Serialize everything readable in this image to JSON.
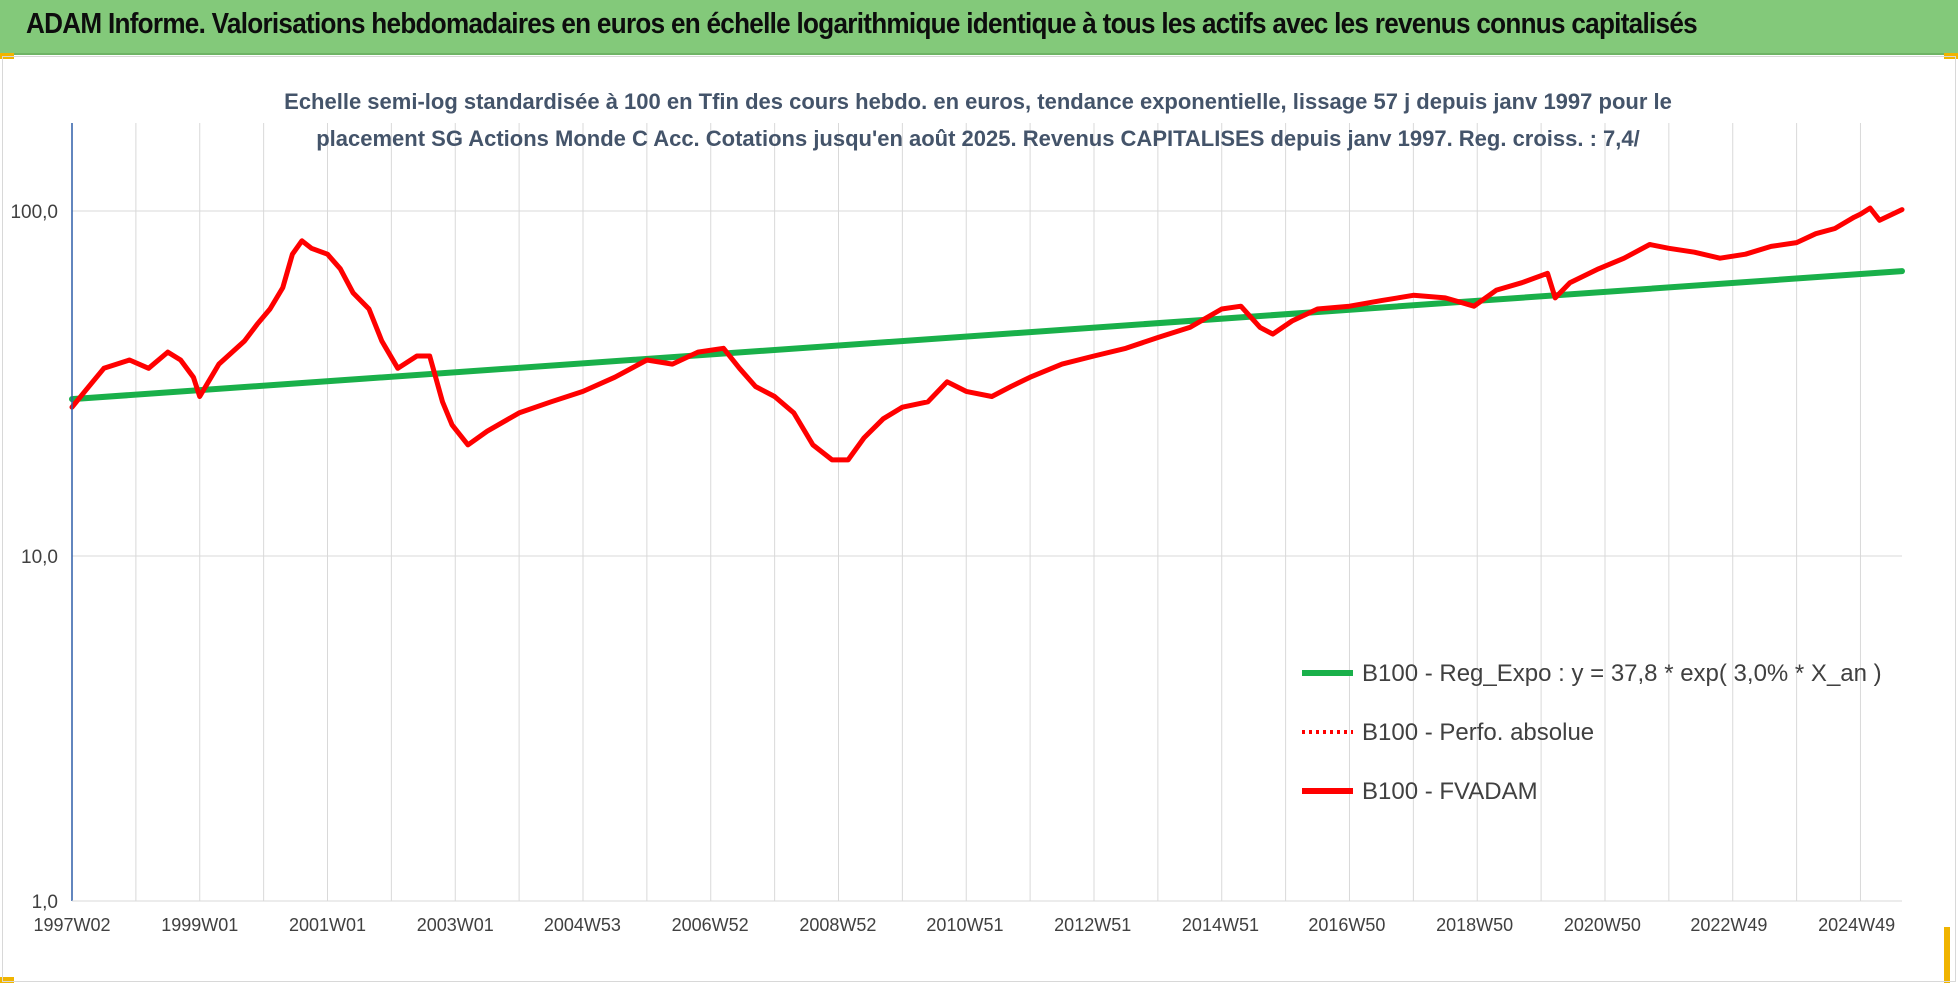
{
  "banner": {
    "title": "ADAM Informe. Valorisations hebdomadaires en euros en échelle logarithmique identique à tous les actifs avec les revenus connus capitalisés"
  },
  "colors": {
    "banner_bg": "#83c97a",
    "corner_accent": "#f0b400",
    "trend": "#19b04a",
    "perf": "#ff0000",
    "fvadam": "#ff0000",
    "axis": "#2e5ea8",
    "grid": "#d9d9d9",
    "text": "#44546a"
  },
  "chart_data": {
    "type": "line",
    "title_line1": "Echelle semi-log standardisée à 100 en Tfin des cours hebdo. en euros, tendance exponentielle, lissage 57 j depuis janv 1997 pour le",
    "title_line2": "placement SG Actions Monde C Acc. Cotations jusqu'en août 2025. Revenus CAPITALISES depuis janv 1997. Reg. croiss. : 7,4/",
    "y_scale": "log",
    "ylim": [
      1,
      180
    ],
    "y_ticks": [
      {
        "value": 1,
        "label": "1,0"
      },
      {
        "value": 10,
        "label": "10,0"
      },
      {
        "value": 100,
        "label": "100,0"
      }
    ],
    "xlim": [
      1997.0,
      2025.65
    ],
    "x_ticks": [
      {
        "x": 1997.0,
        "label": "1997W02"
      },
      {
        "x": 1999.0,
        "label": "1999W01"
      },
      {
        "x": 2001.0,
        "label": "2001W01"
      },
      {
        "x": 2003.0,
        "label": "2003W01"
      },
      {
        "x": 2004.99,
        "label": "2004W53"
      },
      {
        "x": 2006.99,
        "label": "2006W52"
      },
      {
        "x": 2008.99,
        "label": "2008W52"
      },
      {
        "x": 2010.98,
        "label": "2010W51"
      },
      {
        "x": 2012.98,
        "label": "2012W51"
      },
      {
        "x": 2014.98,
        "label": "2014W51"
      },
      {
        "x": 2016.96,
        "label": "2016W50"
      },
      {
        "x": 2018.96,
        "label": "2018W50"
      },
      {
        "x": 2020.96,
        "label": "2020W50"
      },
      {
        "x": 2022.94,
        "label": "2022W49"
      },
      {
        "x": 2024.94,
        "label": "2024W49"
      }
    ],
    "grid": true,
    "legend_position": "bottom-right",
    "series": [
      {
        "name": "B100 - Reg_Expo : y = 37,8 * exp( 3,0% *  X_an )",
        "style": "solid-thick-green",
        "x": [
          1997.0,
          2025.65
        ],
        "y": [
          28.5,
          67
        ]
      },
      {
        "name": "B100 - Perfo. absolue",
        "style": "dotted-red",
        "x": [],
        "y": []
      },
      {
        "name": "B100 - FVADAM",
        "style": "solid-thick-red",
        "x": [
          1997.0,
          1997.2,
          1997.5,
          1997.9,
          1998.2,
          1998.5,
          1998.7,
          1998.9,
          1999.0,
          1999.3,
          1999.7,
          1999.9,
          2000.1,
          2000.3,
          2000.45,
          2000.6,
          2000.75,
          2001.0,
          2001.2,
          2001.4,
          2001.65,
          2001.85,
          2002.1,
          2002.4,
          2002.6,
          2002.8,
          2002.95,
          2003.2,
          2003.5,
          2004.0,
          2004.5,
          2005.0,
          2005.5,
          2006.0,
          2006.4,
          2006.8,
          2007.2,
          2007.45,
          2007.7,
          2008.0,
          2008.3,
          2008.6,
          2008.9,
          2009.15,
          2009.4,
          2009.7,
          2010.0,
          2010.4,
          2010.7,
          2011.0,
          2011.4,
          2011.7,
          2012.0,
          2012.5,
          2013.0,
          2013.5,
          2014.0,
          2014.5,
          2015.0,
          2015.3,
          2015.6,
          2015.8,
          2016.1,
          2016.5,
          2017.0,
          2017.5,
          2018.0,
          2018.5,
          2018.95,
          2019.3,
          2019.7,
          2020.1,
          2020.22,
          2020.45,
          2020.9,
          2021.3,
          2021.7,
          2022.0,
          2022.4,
          2022.8,
          2023.2,
          2023.6,
          2024.0,
          2024.3,
          2024.6,
          2024.9,
          2025.0,
          2025.15,
          2025.3,
          2025.65
        ],
        "y": [
          27,
          30,
          35,
          37,
          35,
          39,
          37,
          33,
          29,
          36,
          42,
          47,
          52,
          60,
          75,
          82,
          78,
          75,
          68,
          58,
          52,
          42,
          35,
          38,
          38,
          28,
          24,
          21,
          23,
          26,
          28,
          30,
          33,
          37,
          36,
          39,
          40,
          35,
          31,
          29,
          26,
          21,
          19,
          19,
          22,
          25,
          27,
          28,
          32,
          30,
          29,
          31,
          33,
          36,
          38,
          40,
          43,
          46,
          52,
          53,
          46,
          44,
          48,
          52,
          53,
          55,
          57,
          56,
          53,
          59,
          62,
          66,
          56,
          62,
          68,
          73,
          80,
          78,
          76,
          73,
          75,
          79,
          81,
          86,
          89,
          96,
          98,
          102,
          94,
          101
        ]
      }
    ]
  }
}
